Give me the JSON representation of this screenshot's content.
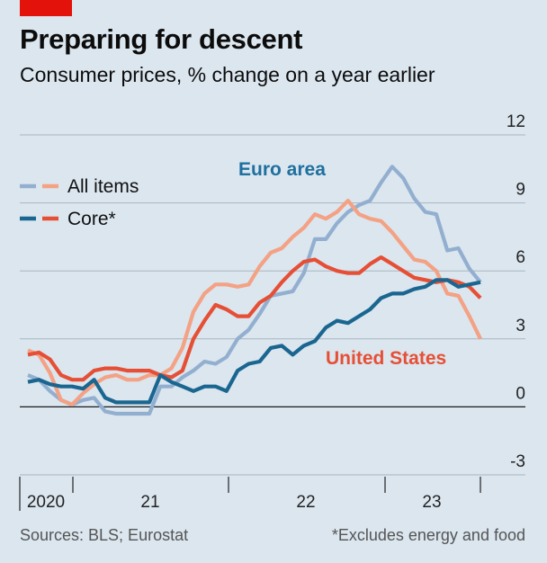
{
  "header": {
    "title": "Preparing for descent",
    "subtitle": "Consumer prices, % change on a year earlier"
  },
  "footer": {
    "sources": "Sources: BLS; Eurostat",
    "note": "*Excludes energy and food"
  },
  "colors": {
    "background": "#dbe6ef",
    "accent_red": "#e3120b",
    "euro_all": "#93afcf",
    "euro_core": "#1a6690",
    "us_all": "#f4a184",
    "us_core": "#e64f35",
    "gridline": "#aab5bf",
    "euro_label": "#1f6f9f",
    "us_label": "#e64f35"
  },
  "chart_data": {
    "type": "line",
    "title": "Preparing for descent",
    "subtitle": "Consumer prices, % change on a year earlier",
    "xlabel": "",
    "ylabel": "",
    "ylim": [
      -3,
      12
    ],
    "yticks": [
      -3,
      0,
      3,
      6,
      9,
      12
    ],
    "x_tick_labels": [
      "2020",
      "21",
      "22",
      "23"
    ],
    "x_start": "2020-01",
    "x_end": "2023-06",
    "legend": {
      "position": "top-left",
      "entries": [
        {
          "label": "All items",
          "style": "light"
        },
        {
          "label": "Core*",
          "style": "dark"
        }
      ]
    },
    "annotations": [
      {
        "text": "Euro area",
        "series_group": "Euro area"
      },
      {
        "text": "United States",
        "series_group": "United States"
      }
    ],
    "series": [
      {
        "name": "Euro area – All items",
        "group": "Euro area",
        "kind": "All items",
        "color": "#93afcf",
        "values": [
          1.4,
          1.2,
          0.7,
          0.3,
          0.1,
          0.3,
          0.4,
          -0.2,
          -0.3,
          -0.3,
          -0.3,
          -0.3,
          0.9,
          0.9,
          1.3,
          1.6,
          2.0,
          1.9,
          2.2,
          3.0,
          3.4,
          4.1,
          4.9,
          5.0,
          5.1,
          5.9,
          7.4,
          7.4,
          8.1,
          8.6,
          8.9,
          9.1,
          9.9,
          10.6,
          10.1,
          9.2,
          8.6,
          8.5,
          6.9,
          7.0,
          6.1,
          5.5
        ]
      },
      {
        "name": "Euro area – Core*",
        "group": "Euro area",
        "kind": "Core",
        "color": "#1a6690",
        "values": [
          1.1,
          1.2,
          1.0,
          0.9,
          0.9,
          0.8,
          1.2,
          0.4,
          0.2,
          0.2,
          0.2,
          0.2,
          1.4,
          1.1,
          0.9,
          0.7,
          0.9,
          0.9,
          0.7,
          1.6,
          1.9,
          2.0,
          2.6,
          2.7,
          2.3,
          2.7,
          2.9,
          3.5,
          3.8,
          3.7,
          4.0,
          4.3,
          4.8,
          5.0,
          5.0,
          5.2,
          5.3,
          5.6,
          5.6,
          5.3,
          5.4,
          5.5
        ]
      },
      {
        "name": "United States – All items",
        "group": "United States",
        "kind": "All items",
        "color": "#f4a184",
        "values": [
          2.5,
          2.3,
          1.5,
          0.3,
          0.1,
          0.6,
          1.0,
          1.3,
          1.4,
          1.2,
          1.2,
          1.4,
          1.4,
          1.7,
          2.6,
          4.2,
          5.0,
          5.4,
          5.4,
          5.3,
          5.4,
          6.2,
          6.8,
          7.0,
          7.5,
          7.9,
          8.5,
          8.3,
          8.6,
          9.1,
          8.5,
          8.3,
          8.2,
          7.7,
          7.1,
          6.5,
          6.4,
          6.0,
          5.0,
          4.9,
          4.0,
          3.0
        ]
      },
      {
        "name": "United States – Core*",
        "group": "United States",
        "kind": "Core",
        "color": "#e64f35",
        "values": [
          2.3,
          2.4,
          2.1,
          1.4,
          1.2,
          1.2,
          1.6,
          1.7,
          1.7,
          1.6,
          1.6,
          1.6,
          1.4,
          1.3,
          1.6,
          3.0,
          3.8,
          4.5,
          4.3,
          4.0,
          4.0,
          4.6,
          4.9,
          5.5,
          6.0,
          6.4,
          6.5,
          6.2,
          6.0,
          5.9,
          5.9,
          6.3,
          6.6,
          6.3,
          6.0,
          5.7,
          5.6,
          5.5,
          5.6,
          5.5,
          5.3,
          4.8
        ]
      }
    ]
  }
}
